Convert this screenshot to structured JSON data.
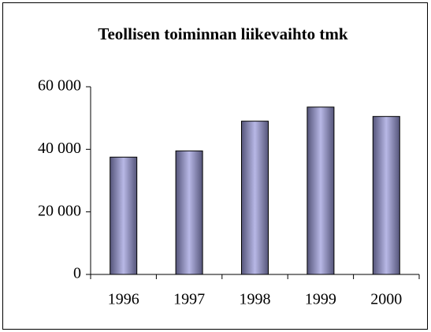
{
  "chart_data": {
    "type": "bar",
    "title": "Teollisen toiminnan liikevaihto tmk",
    "categories": [
      "1996",
      "1997",
      "1998",
      "1999",
      "2000"
    ],
    "values": [
      37500,
      39500,
      49000,
      53500,
      50500
    ],
    "color": "#9999cc",
    "ylim": [
      0,
      60000
    ],
    "yticks": [
      0,
      {
        "value": 20000,
        "label": "20 000"
      },
      {
        "value": 40000,
        "label": "40 000"
      },
      {
        "value": 60000,
        "label": "60 000"
      }
    ],
    "grid": false
  }
}
